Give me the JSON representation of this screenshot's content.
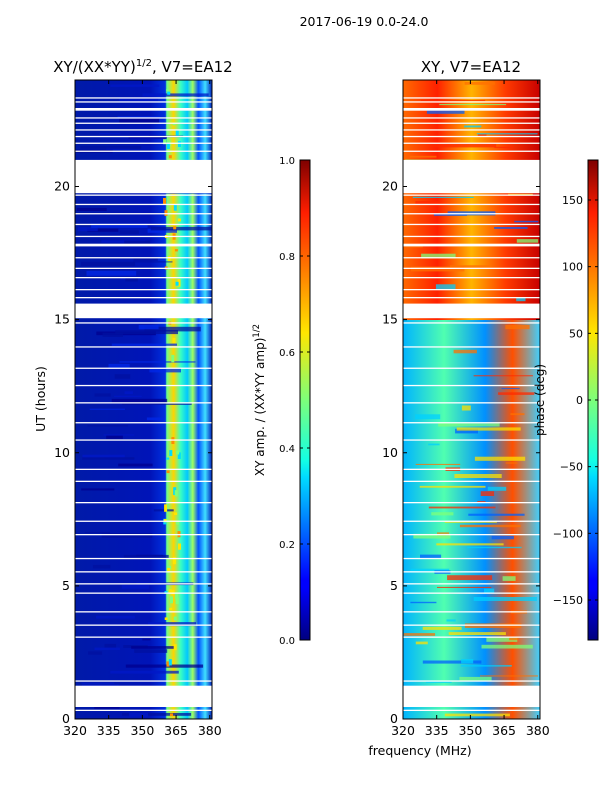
{
  "figure_title": "2017-06-19 0.0-24.0",
  "shared_xlabel": "frequency (MHz)",
  "chart_data": [
    {
      "type": "heatmap",
      "title_prefix": "XY/(XX*YY)",
      "title_sup": "1/2",
      "title_suffix": ", V7=EA12",
      "xlabel": "",
      "ylabel": "UT (hours)",
      "xlim": [
        320,
        381
      ],
      "ylim": [
        0,
        24
      ],
      "xticks": [
        320,
        335,
        350,
        365,
        380
      ],
      "yticks": [
        0,
        5,
        10,
        15,
        20
      ],
      "bright_band_mhz": [
        359,
        366
      ],
      "colorbar": {
        "label_main": "XY amp. / (XX*YY amp)",
        "label_sup": "1/2",
        "range": [
          0.0,
          1.0
        ],
        "ticks": [
          "0.0",
          "0.2",
          "0.4",
          "0.6",
          "0.8",
          "1.0"
        ],
        "tick_values": [
          0.0,
          0.2,
          0.4,
          0.6,
          0.8,
          1.0
        ]
      }
    },
    {
      "type": "heatmap",
      "title": "XY, V7=EA12",
      "xlabel": "",
      "ylabel": "",
      "xlim": [
        320,
        381
      ],
      "ylim": [
        0,
        24
      ],
      "xticks": [
        320,
        335,
        350,
        365,
        380
      ],
      "yticks": [
        0,
        5,
        10,
        15,
        20
      ],
      "colorbar": {
        "label": "phase (deg)",
        "range": [
          -180,
          180
        ],
        "ticks": [
          "150",
          "100",
          "50",
          "0",
          "−50",
          "−100",
          "−150"
        ],
        "tick_values": [
          150,
          100,
          50,
          0,
          -50,
          -100,
          -150
        ]
      }
    }
  ],
  "data_gaps_ut_hours": [
    [
      0.3,
      0.35
    ],
    [
      0.45,
      1.25
    ],
    [
      1.4,
      1.45
    ],
    [
      3.05,
      3.1
    ],
    [
      3.5,
      3.55
    ],
    [
      4.0,
      4.05
    ],
    [
      4.7,
      4.75
    ],
    [
      5.05,
      5.1
    ],
    [
      5.5,
      5.55
    ],
    [
      6.0,
      6.05
    ],
    [
      6.9,
      6.95
    ],
    [
      7.4,
      7.45
    ],
    [
      8.1,
      8.15
    ],
    [
      8.9,
      8.95
    ],
    [
      9.35,
      9.4
    ],
    [
      10.45,
      10.5
    ],
    [
      11.1,
      11.15
    ],
    [
      11.85,
      11.9
    ],
    [
      12.5,
      12.55
    ],
    [
      13.15,
      13.2
    ],
    [
      13.95,
      14.0
    ],
    [
      14.85,
      14.9
    ],
    [
      15.05,
      15.6
    ],
    [
      15.8,
      15.85
    ],
    [
      16.1,
      16.15
    ],
    [
      16.55,
      16.6
    ],
    [
      16.9,
      16.95
    ],
    [
      17.3,
      17.35
    ],
    [
      17.75,
      17.85
    ],
    [
      18.1,
      18.15
    ],
    [
      18.55,
      18.6
    ],
    [
      18.95,
      19.0
    ],
    [
      19.3,
      19.35
    ],
    [
      19.65,
      19.7
    ],
    [
      19.75,
      21.0
    ],
    [
      21.3,
      21.35
    ],
    [
      21.6,
      21.65
    ],
    [
      21.85,
      21.9
    ],
    [
      22.1,
      22.15
    ],
    [
      22.35,
      22.4
    ],
    [
      22.55,
      22.6
    ],
    [
      22.85,
      22.95
    ],
    [
      23.15,
      23.2
    ],
    [
      23.3,
      23.35
    ]
  ]
}
